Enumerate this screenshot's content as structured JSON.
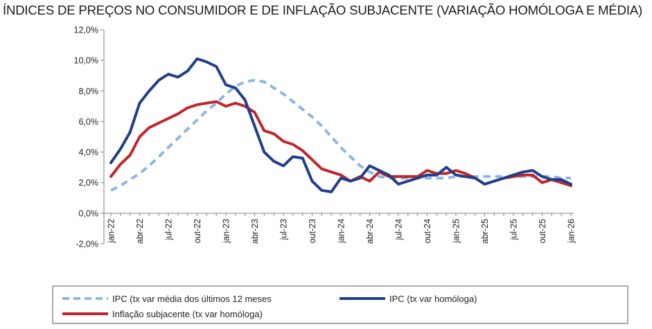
{
  "chart_data": {
    "type": "line",
    "title": "ÍNDICES DE PREÇOS NO CONSUMIDOR E DE INFLAÇÃO SUBJACENTE (VARIAÇÃO HOMÓLOGA E MÉDIA)",
    "xlabel": "",
    "ylabel": "",
    "ylim": [
      -2,
      12
    ],
    "yticks": [
      "-2,0%",
      "0,0%",
      "2,0%",
      "4,0%",
      "6,0%",
      "8,0%",
      "10,0%",
      "12,0%"
    ],
    "ytick_values": [
      -2,
      0,
      2,
      4,
      6,
      8,
      10,
      12
    ],
    "xtick_labels": [
      "jan-22",
      "abr-22",
      "jul-22",
      "out-22",
      "jan-23",
      "abr-23",
      "jul-23",
      "out-23",
      "jan-24",
      "abr-24",
      "jul-24",
      "out-24",
      "jan-25",
      "abr-25",
      "jul-25",
      "out-25",
      "jan-26"
    ],
    "xtick_index": [
      0,
      3,
      6,
      9,
      12,
      15,
      18,
      21,
      24,
      27,
      30,
      33,
      36,
      39,
      42,
      45,
      48
    ],
    "x": [
      "jan-22",
      "fev-22",
      "mar-22",
      "abr-22",
      "mai-22",
      "jun-22",
      "jul-22",
      "ago-22",
      "set-22",
      "out-22",
      "nov-22",
      "dez-22",
      "jan-23",
      "fev-23",
      "mar-23",
      "abr-23",
      "mai-23",
      "jun-23",
      "jul-23",
      "ago-23",
      "set-23",
      "out-23",
      "nov-23",
      "dez-23",
      "jan-24",
      "fev-24",
      "mar-24",
      "abr-24",
      "mai-24",
      "jun-24",
      "jul-24",
      "ago-24",
      "set-24",
      "out-24",
      "nov-24",
      "dez-24",
      "jan-25",
      "fev-25",
      "mar-25",
      "abr-25",
      "mai-25",
      "jun-25",
      "jul-25",
      "ago-25",
      "set-25",
      "out-25",
      "nov-25",
      "dez-25",
      "jan-26"
    ],
    "grid": false,
    "legend_position": "bottom",
    "series": [
      {
        "name": "IPC (tx var média dos últimos 12 meses",
        "color": "#8eb4e3",
        "style": "dashed",
        "values": [
          1.5,
          1.8,
          2.2,
          2.6,
          3.1,
          3.7,
          4.3,
          4.9,
          5.5,
          6.1,
          6.7,
          7.2,
          7.8,
          8.3,
          8.6,
          8.7,
          8.6,
          8.2,
          7.8,
          7.3,
          6.8,
          6.3,
          5.7,
          5.0,
          4.3,
          3.7,
          3.1,
          2.7,
          2.4,
          2.3,
          2.3,
          2.3,
          2.3,
          2.3,
          2.3,
          2.3,
          2.4,
          2.4,
          2.4,
          2.4,
          2.4,
          2.4,
          2.4,
          2.4,
          2.4,
          2.4,
          2.4,
          2.3,
          2.3
        ]
      },
      {
        "name": "IPC (tx var homóloga)",
        "color": "#1f3f8a",
        "style": "solid",
        "values": [
          3.3,
          4.2,
          5.3,
          7.2,
          8.0,
          8.7,
          9.1,
          8.9,
          9.3,
          10.1,
          9.9,
          9.6,
          8.4,
          8.2,
          7.4,
          5.7,
          4.0,
          3.4,
          3.1,
          3.7,
          3.6,
          2.1,
          1.5,
          1.4,
          2.3,
          2.1,
          2.3,
          3.1,
          2.8,
          2.5,
          1.9,
          2.1,
          2.3,
          2.5,
          2.5,
          3.0,
          2.5,
          2.4,
          2.3,
          1.9,
          2.1,
          2.3,
          2.5,
          2.7,
          2.8,
          2.4,
          2.2,
          2.2,
          1.9
        ]
      },
      {
        "name": "Inflação subjacente (tx var homóloga)",
        "color": "#c0262c",
        "style": "solid",
        "values": [
          2.4,
          3.2,
          3.8,
          5.0,
          5.6,
          5.9,
          6.2,
          6.5,
          6.9,
          7.1,
          7.2,
          7.3,
          7.0,
          7.2,
          7.0,
          6.6,
          5.4,
          5.2,
          4.7,
          4.5,
          4.1,
          3.5,
          2.9,
          2.7,
          2.5,
          2.1,
          2.4,
          2.1,
          2.7,
          2.4,
          2.4,
          2.4,
          2.4,
          2.8,
          2.6,
          2.6,
          2.8,
          2.6,
          2.3,
          1.9,
          2.1,
          2.3,
          2.4,
          2.5,
          2.5,
          2.0,
          2.2,
          2.0,
          1.8
        ]
      }
    ]
  }
}
